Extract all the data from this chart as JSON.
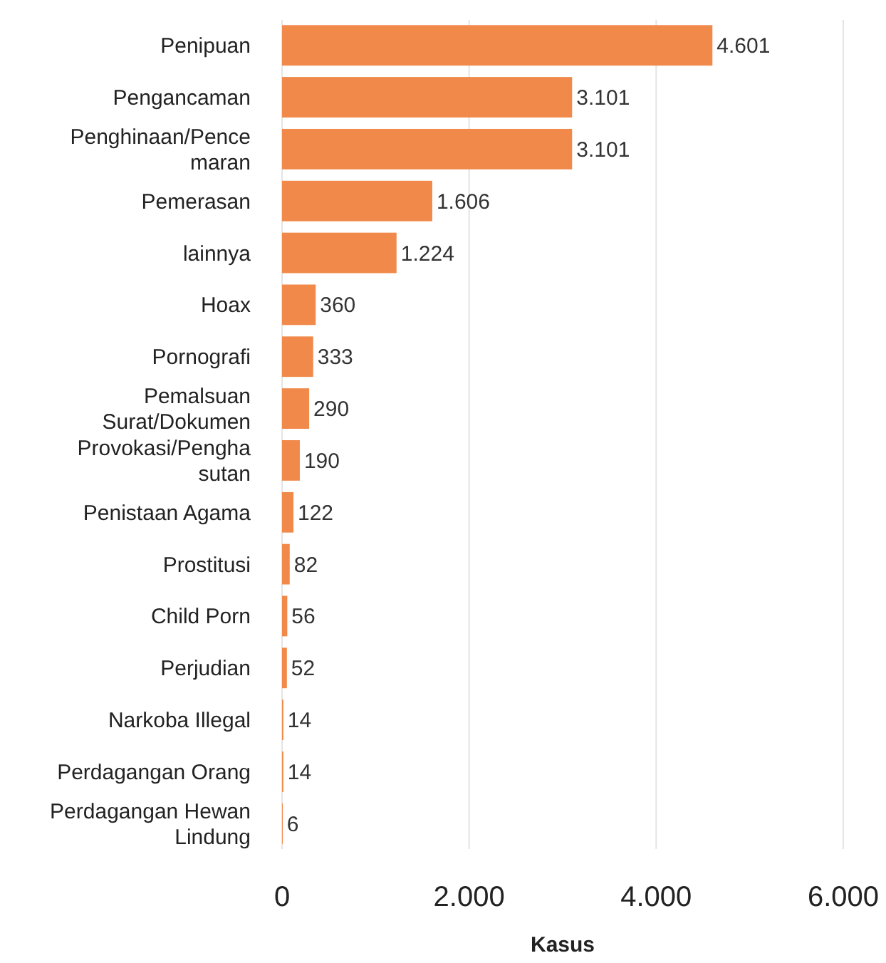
{
  "chart_data": {
    "type": "bar",
    "orientation": "horizontal",
    "xlabel": "Kasus",
    "categories": [
      "Penipuan",
      "Pengancaman",
      "Penghinaan/Pencemaran",
      "Pemerasan",
      "lainnya",
      "Hoax",
      "Pornografi",
      "Pemalsuan Surat/Dokumen",
      "Provokasi/Penghasutan",
      "Penistaan Agama",
      "Prostitusi",
      "Child Porn",
      "Perjudian",
      "Narkoba Illegal",
      "Perdagangan Orang",
      "Perdagangan Hewan Lindung"
    ],
    "values": [
      4601,
      3101,
      3101,
      1606,
      1224,
      360,
      333,
      290,
      190,
      122,
      82,
      56,
      52,
      14,
      14,
      6
    ],
    "value_labels": [
      "4.601",
      "3.101",
      "3.101",
      "1.606",
      "1.224",
      "360",
      "333",
      "290",
      "190",
      "122",
      "82",
      "56",
      "52",
      "14",
      "14",
      "6"
    ],
    "color": "#f0894a",
    "xlim": [
      0,
      6000
    ],
    "xticks": [
      {
        "value": 0,
        "label": "0"
      },
      {
        "value": 2000,
        "label": "2.000"
      },
      {
        "value": 4000,
        "label": "4.000"
      },
      {
        "value": 6000,
        "label": "6.000"
      }
    ],
    "grid": "x"
  }
}
